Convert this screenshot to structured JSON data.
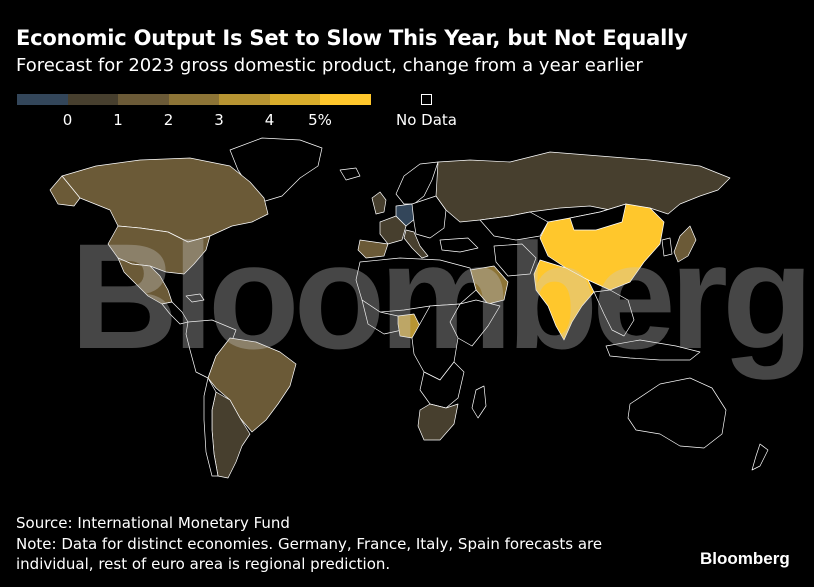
{
  "chart_data": {
    "type": "choropleth-map",
    "title": "Economic Output Is Set to Slow This Year, but Not Equally",
    "subtitle": "Forecast for 2023 gross domestic product, change from a year earlier",
    "legend": {
      "bins": [
        {
          "range": "<0",
          "color": "#33465a"
        },
        {
          "range": "0-1",
          "color": "#473f2e"
        },
        {
          "range": "1-2",
          "color": "#6b5a37"
        },
        {
          "range": "2-3",
          "color": "#8d7436"
        },
        {
          "range": "3-4",
          "color": "#b79432"
        },
        {
          "range": "4-5",
          "color": "#d9ad2b"
        },
        {
          "range": ">5",
          "color": "#ffc72c"
        }
      ],
      "tick_labels": [
        "0",
        "1",
        "2",
        "3",
        "4",
        "5%"
      ],
      "no_data_label": "No Data",
      "placement": "top-left"
    },
    "regions": [
      {
        "name": "Canada",
        "bin": "1-2"
      },
      {
        "name": "United States",
        "bin": "1-2"
      },
      {
        "name": "Mexico",
        "bin": "1-2"
      },
      {
        "name": "Brazil",
        "bin": "1-2"
      },
      {
        "name": "Argentina",
        "bin": "0-1"
      },
      {
        "name": "Russia",
        "bin": "0-1"
      },
      {
        "name": "China",
        "bin": ">5"
      },
      {
        "name": "India",
        "bin": ">5"
      },
      {
        "name": "Germany",
        "bin": "<0"
      },
      {
        "name": "France",
        "bin": "0-1"
      },
      {
        "name": "Spain",
        "bin": "1-2"
      },
      {
        "name": "Italy",
        "bin": "0-1"
      },
      {
        "name": "United Kingdom",
        "bin": "0-1"
      },
      {
        "name": "Saudi Arabia",
        "bin": "2-3"
      },
      {
        "name": "Nigeria",
        "bin": "3-4"
      },
      {
        "name": "South Africa",
        "bin": "0-1"
      },
      {
        "name": "Japan",
        "bin": "1-2"
      },
      {
        "name": "Australia",
        "bin": "No Data"
      }
    ]
  },
  "watermark": "Bloomberg",
  "source": "Source: International Monetary Fund",
  "note": "Note: Data for distinct economies. Germany, France, Italy, Spain forecasts are individual, rest of euro area is regional prediction.",
  "brand": "Bloomberg",
  "colors": {
    "background": "#000000",
    "border": "#ffffff",
    "text": "#ffffff"
  }
}
